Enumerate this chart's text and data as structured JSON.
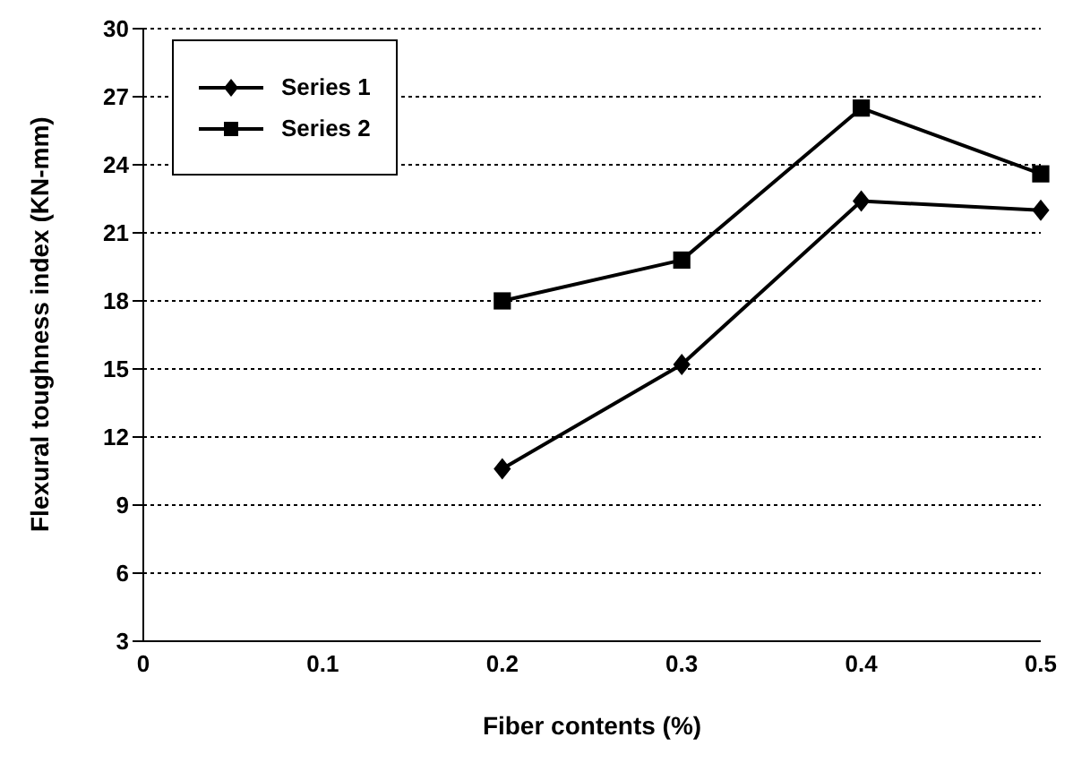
{
  "chart_data": {
    "type": "line",
    "xlabel": "Fiber contents (%)",
    "ylabel": "Flexural toughness index (KN-mm)",
    "categories": [
      "0",
      "0.1",
      "0.2",
      "0.3",
      "0.4",
      "0.5"
    ],
    "series": [
      {
        "name": "Series 1",
        "color": "#000000",
        "marker": "diamond",
        "values": [
          null,
          null,
          10.6,
          15.2,
          22.4,
          22.0
        ]
      },
      {
        "name": "Series 2",
        "color": "#000000",
        "marker": "square",
        "values": [
          null,
          null,
          18.0,
          19.8,
          26.5,
          23.6
        ]
      }
    ],
    "ylim": [
      3,
      30
    ],
    "yticks": [
      3,
      6,
      9,
      12,
      15,
      18,
      21,
      24,
      27,
      30
    ],
    "grid": "y",
    "legend": "top left",
    "line_style": "solid"
  }
}
